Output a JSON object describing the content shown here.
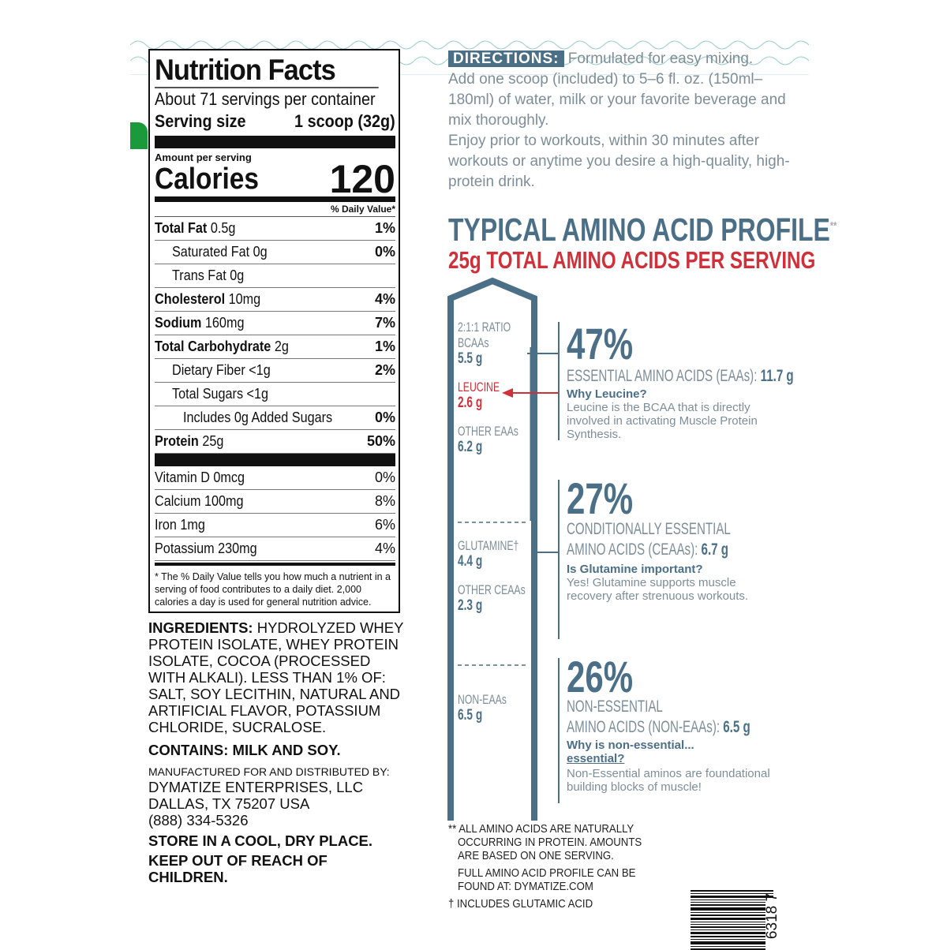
{
  "nutrition": {
    "title": "Nutrition Facts",
    "servings": "About 71 servings per container",
    "serving_size_label": "Serving size",
    "serving_size_value": "1 scoop (32g)",
    "amount_per_serving": "Amount per serving",
    "calories_label": "Calories",
    "calories_value": "120",
    "dv_header": "% Daily Value*",
    "rows": [
      {
        "bold": "Total Fat",
        "amt": "0.5g",
        "dv": "1%"
      },
      {
        "bold": "",
        "amt": "Saturated Fat 0g",
        "dv": "0%"
      },
      {
        "bold": "",
        "amt": "Trans Fat 0g",
        "dv": ""
      },
      {
        "bold": "Cholesterol",
        "amt": "10mg",
        "dv": "4%"
      },
      {
        "bold": "Sodium",
        "amt": "160mg",
        "dv": "7%"
      },
      {
        "bold": "Total Carbohydrate",
        "amt": "2g",
        "dv": "1%"
      },
      {
        "bold": "",
        "amt": "Dietary Fiber <1g",
        "dv": "2%"
      },
      {
        "bold": "",
        "amt": "Total Sugars <1g",
        "dv": ""
      },
      {
        "bold": "",
        "amt": "Includes 0g Added Sugars",
        "dv": "0%"
      },
      {
        "bold": "Protein",
        "amt": "25g",
        "dv": "50%"
      }
    ],
    "vitamins": [
      {
        "name": "Vitamin D 0mcg",
        "dv": "0%"
      },
      {
        "name": "Calcium 100mg",
        "dv": "8%"
      },
      {
        "name": "Iron 1mg",
        "dv": "6%"
      },
      {
        "name": "Potassium 230mg",
        "dv": "4%"
      }
    ],
    "footnote": "* The % Daily Value tells you how much a nutrient in a serving of food contributes to a daily diet. 2,000 calories a day is used for general nutrition advice."
  },
  "ingredients": "INGREDIENTS: HYDROLYZED WHEY PROTEIN ISOLATE, WHEY PROTEIN ISOLATE, COCOA (PROCESSED WITH ALKALI). LESS THAN 1% OF: SALT, SOY LECITHIN, NATURAL AND ARTIFICIAL FLAVOR, POTASSIUM CHLORIDE, SUCRALOSE.",
  "ingredients_label": "INGREDIENTS:",
  "ingredients_body": "HYDROLYZED WHEY PROTEIN ISOLATE, WHEY PROTEIN ISOLATE, COCOA (PROCESSED WITH ALKALI). LESS THAN 1% OF: SALT, SOY LECITHIN, NATURAL AND ARTIFICIAL FLAVOR, POTASSIUM CHLORIDE, SUCRALOSE.",
  "contains": "CONTAINS: MILK AND SOY.",
  "manufacturer": {
    "label": "MANUFACTURED FOR AND DISTRIBUTED BY:",
    "name": "DYMATIZE ENTERPRISES, LLC",
    "city": "DALLAS, TX 75207 USA",
    "phone": "(888) 334-5326"
  },
  "storage": [
    "STORE IN A COOL, DRY PLACE.",
    "KEEP OUT OF REACH OF CHILDREN."
  ],
  "directions": {
    "badge": "DIRECTIONS:",
    "text1": "Formulated for easy mixing.",
    "text2": "Add one scoop (included) to 5–6 fl. oz. (150ml–180ml) of water, milk or your favorite beverage and mix thoroughly.",
    "text3": "Enjoy prior to workouts, within 30 minutes after workouts or anytime you desire a high-quality, high-protein drink."
  },
  "amino": {
    "title": "TYPICAL AMINO ACID PROFILE",
    "title_mark": "**",
    "subtitle": "25g TOTAL AMINO ACIDS PER SERVING",
    "labels": {
      "bcaa_a": "2:1:1 RATIO",
      "bcaa_b": "BCAAs",
      "bcaa_v": "5.5 g",
      "leu": "LEUCINE",
      "leu_v": "2.6 g",
      "oeaa": "OTHER EAAs",
      "oeaa_v": "6.2 g",
      "glu": "GLUTAMINE†",
      "glu_v": "4.4 g",
      "oceaa": "OTHER CEAAs",
      "oceaa_v": "2.3 g",
      "neaa": "NON-EAAs",
      "neaa_v": "6.5 g"
    },
    "sections": [
      {
        "pct": "47%",
        "cat1": "ESSENTIAL AMINO ACIDS (EAAs):",
        "cat_v": "11.7 g",
        "q": "Why Leucine?",
        "a": "Leucine is the BCAA that is directly involved in activating Muscle Protein Synthesis."
      },
      {
        "pct": "27%",
        "cat0": "CONDITIONALLY ESSENTIAL",
        "cat1": "AMINO ACIDS (CEAAs):",
        "cat_v": "6.7 g",
        "q": "Is Glutamine important?",
        "a": "Yes! Glutamine supports muscle recovery after strenuous workouts."
      },
      {
        "pct": "26%",
        "cat0": "NON-ESSENTIAL",
        "cat1": "AMINO ACIDS (NON-EAAs):",
        "cat_v": "6.5 g",
        "q": "Why is non-essential...",
        "q2": "essential?",
        "a": "Non-Essential aminos are foundational building blocks of muscle!"
      }
    ],
    "footnotes": [
      "** ALL AMINO ACIDS ARE NATURALLY",
      "OCCURRING IN PROTEIN. AMOUNTS",
      "ARE BASED ON ONE SERVING.",
      "FULL AMINO ACID PROFILE CAN BE",
      "FOUND AT: DYMATIZE.COM",
      "† INCLUDES GLUTAMIC ACID"
    ]
  },
  "barcode_digits": "6318 7",
  "colors": {
    "accent": "#4b6f86",
    "red": "#d0303a",
    "body_text": "#7d8e98"
  }
}
